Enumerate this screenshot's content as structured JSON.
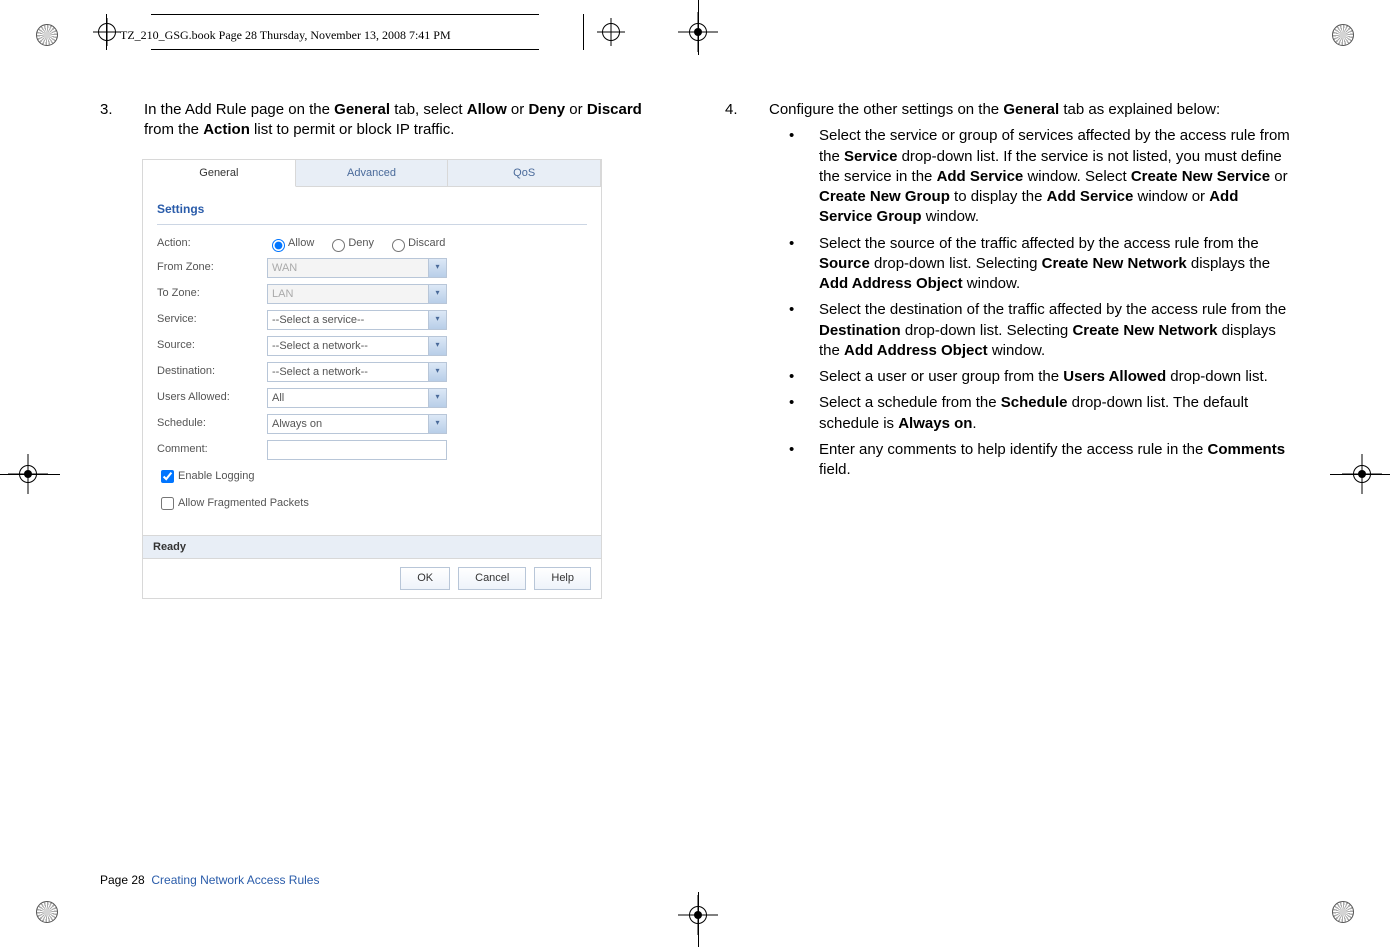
{
  "header_text": "TZ_210_GSG.book  Page 28  Thursday, November 13, 2008  7:41 PM",
  "left": {
    "num": "3.",
    "text_parts": [
      "In the Add Rule page on the ",
      "General",
      " tab, select ",
      "Allow",
      " or ",
      "Deny",
      " or ",
      "Discard",
      " from the ",
      "Action",
      " list to permit or block IP traffic."
    ]
  },
  "dialog": {
    "tabs": [
      "General",
      "Advanced",
      "QoS"
    ],
    "section": "Settings",
    "rows": {
      "action_label": "Action:",
      "radios": [
        "Allow",
        "Deny",
        "Discard"
      ],
      "from_zone": {
        "label": "From Zone:",
        "value": "WAN"
      },
      "to_zone": {
        "label": "To Zone:",
        "value": "LAN"
      },
      "service": {
        "label": "Service:",
        "value": "--Select a service--"
      },
      "source": {
        "label": "Source:",
        "value": "--Select a network--"
      },
      "destination": {
        "label": "Destination:",
        "value": "--Select a network--"
      },
      "users": {
        "label": "Users Allowed:",
        "value": "All"
      },
      "schedule": {
        "label": "Schedule:",
        "value": "Always on"
      },
      "comment": {
        "label": "Comment:",
        "value": ""
      }
    },
    "chk1": "Enable Logging",
    "chk2": "Allow Fragmented Packets",
    "status": "Ready",
    "buttons": [
      "OK",
      "Cancel",
      "Help"
    ]
  },
  "right": {
    "num": "4.",
    "intro_parts": [
      "Configure the other settings on the ",
      "General",
      " tab as explained below:"
    ],
    "bullets": [
      [
        "Select the service or group of services affected by the access rule from the ",
        "Service",
        " drop-down list. If the service is not listed, you must define the service in the ",
        "Add Service",
        " window. Select ",
        "Create New Service",
        " or ",
        "Create New Group",
        " to display the ",
        "Add Service",
        " window or ",
        "Add Service Group",
        " window."
      ],
      [
        "Select the source of the traffic affected by the access rule from the ",
        "Source",
        " drop-down list. Selecting ",
        "Create New Network",
        " displays the ",
        "Add Address Object",
        " window."
      ],
      [
        "Select the destination of the traffic affected by the access rule from the ",
        "Destination",
        " drop-down list. Selecting ",
        "Create New Network",
        " displays the ",
        "Add Address Object",
        " window."
      ],
      [
        "Select a user or user group from the ",
        "Users Allowed",
        " drop-down list."
      ],
      [
        "Select a schedule from the ",
        "Schedule",
        " drop-down list. The default schedule is ",
        "Always on",
        "."
      ],
      [
        "Enter any comments to help identify the access rule in the ",
        "Comments",
        " field."
      ]
    ]
  },
  "footer": {
    "page": "Page 28",
    "title": "Creating Network Access Rules"
  }
}
